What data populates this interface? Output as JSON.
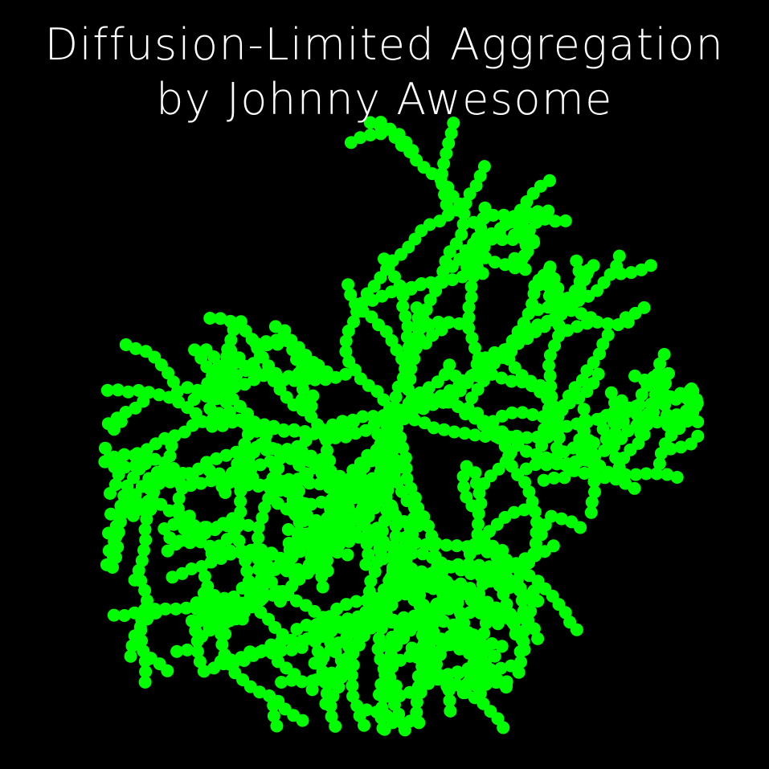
{
  "title": {
    "line1": "Diffusion-Limited Aggregation",
    "line2": "by Johnny Awesome"
  },
  "colors": {
    "background": "#000000",
    "text": "#ffffff",
    "particle": "#00ff00"
  }
}
